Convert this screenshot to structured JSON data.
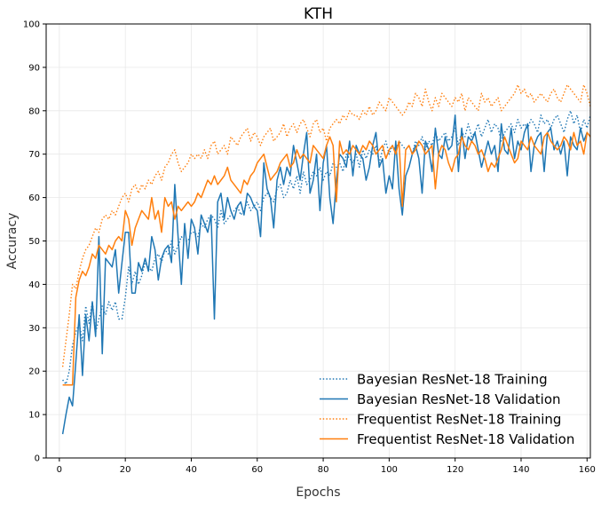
{
  "chart_data": {
    "type": "line",
    "title": "KTH",
    "xlabel": "Epochs",
    "ylabel": "Accuracy",
    "xlim": [
      -4,
      161
    ],
    "ylim": [
      0,
      100
    ],
    "xticks": [
      0,
      20,
      40,
      60,
      80,
      100,
      120,
      140,
      160
    ],
    "yticks": [
      0,
      10,
      20,
      30,
      40,
      50,
      60,
      70,
      80,
      90,
      100
    ],
    "grid": true,
    "legend_position": "lower-right",
    "series": [
      {
        "name": "Bayesian ResNet-18 Training",
        "color": "#1f77b4",
        "style": "dotted",
        "x": [
          1,
          2,
          3,
          4,
          5,
          6,
          7,
          8,
          9,
          10,
          11,
          12,
          13,
          14,
          15,
          16,
          17,
          18,
          19,
          20,
          21,
          22,
          23,
          24,
          25,
          26,
          27,
          28,
          29,
          30,
          31,
          32,
          33,
          34,
          35,
          36,
          37,
          38,
          39,
          40,
          41,
          42,
          43,
          44,
          45,
          46,
          47,
          48,
          49,
          50,
          51,
          52,
          53,
          54,
          55,
          56,
          57,
          58,
          59,
          60,
          61,
          62,
          63,
          64,
          65,
          66,
          67,
          68,
          69,
          70,
          71,
          72,
          73,
          74,
          75,
          76,
          77,
          78,
          79,
          80,
          81,
          82,
          83,
          84,
          85,
          86,
          87,
          88,
          89,
          90,
          91,
          92,
          93,
          94,
          95,
          96,
          97,
          98,
          99,
          100,
          101,
          102,
          103,
          104,
          105,
          106,
          107,
          108,
          109,
          110,
          111,
          112,
          113,
          114,
          115,
          116,
          117,
          118,
          119,
          120,
          121,
          122,
          123,
          124,
          125,
          126,
          127,
          128,
          129,
          130,
          131,
          132,
          133,
          134,
          135,
          136,
          137,
          138,
          139,
          140,
          141,
          142,
          143,
          144,
          145,
          146,
          147,
          148,
          149,
          150,
          151,
          152,
          153,
          154,
          155,
          156,
          157,
          158,
          159,
          160,
          161
        ],
        "y": [
          18,
          17,
          20,
          26,
          29,
          31,
          27,
          35,
          31,
          36,
          29,
          32,
          35,
          33,
          36,
          34,
          36,
          32,
          32,
          37,
          44,
          40,
          43,
          40,
          42,
          45,
          44,
          43,
          46,
          47,
          45,
          48,
          47,
          50,
          47,
          49,
          51,
          50,
          50,
          52,
          52,
          51,
          54,
          53,
          55,
          56,
          55,
          53,
          57,
          54,
          55,
          56,
          57,
          58,
          56,
          57,
          59,
          57,
          58,
          59,
          57,
          60,
          61,
          60,
          59,
          62,
          63,
          60,
          61,
          64,
          62,
          65,
          61,
          66,
          63,
          64,
          66,
          65,
          67,
          64,
          66,
          65,
          68,
          67,
          68,
          66,
          70,
          69,
          68,
          70,
          67,
          71,
          69,
          71,
          70,
          72,
          68,
          71,
          73,
          70,
          72,
          71,
          73,
          72,
          71,
          72,
          70,
          73,
          72,
          74,
          71,
          73,
          72,
          75,
          73,
          74,
          75,
          73,
          74,
          76,
          72,
          75,
          74,
          77,
          74,
          75,
          77,
          74,
          76,
          78,
          75,
          77,
          76,
          73,
          75,
          76,
          77,
          75,
          78,
          76,
          77,
          76,
          78,
          77,
          75,
          79,
          77,
          78,
          76,
          78,
          79,
          77,
          75,
          78,
          80,
          77,
          79,
          75,
          78,
          76,
          79
        ]
      },
      {
        "name": "Bayesian ResNet-18 Validation",
        "color": "#1f77b4",
        "style": "solid",
        "x": [
          1,
          2,
          3,
          4,
          5,
          6,
          7,
          8,
          9,
          10,
          11,
          12,
          13,
          14,
          15,
          16,
          17,
          18,
          19,
          20,
          21,
          22,
          23,
          24,
          25,
          26,
          27,
          28,
          29,
          30,
          31,
          32,
          33,
          34,
          35,
          36,
          37,
          38,
          39,
          40,
          41,
          42,
          43,
          44,
          45,
          46,
          47,
          48,
          49,
          50,
          51,
          52,
          53,
          54,
          55,
          56,
          57,
          58,
          59,
          60,
          61,
          62,
          63,
          64,
          65,
          66,
          67,
          68,
          69,
          70,
          71,
          72,
          73,
          74,
          75,
          76,
          77,
          78,
          79,
          80,
          81,
          82,
          83,
          84,
          85,
          86,
          87,
          88,
          89,
          90,
          91,
          92,
          93,
          94,
          95,
          96,
          97,
          98,
          99,
          100,
          101,
          102,
          103,
          104,
          105,
          106,
          107,
          108,
          109,
          110,
          111,
          112,
          113,
          114,
          115,
          116,
          117,
          118,
          119,
          120,
          121,
          122,
          123,
          124,
          125,
          126,
          127,
          128,
          129,
          130,
          131,
          132,
          133,
          134,
          135,
          136,
          137,
          138,
          139,
          140,
          141,
          142,
          143,
          144,
          145,
          146,
          147,
          148,
          149,
          150,
          151,
          152,
          153,
          154,
          155,
          156,
          157,
          158,
          159,
          160,
          161
        ],
        "y": [
          5.5,
          10,
          14,
          12,
          22,
          33,
          19,
          33,
          27,
          36,
          28,
          51,
          24,
          46,
          45,
          44,
          48,
          38,
          45,
          52,
          52,
          38,
          38,
          45,
          43,
          46,
          43,
          51,
          48,
          41,
          46,
          48,
          49,
          45,
          63,
          51,
          40,
          54,
          46,
          55,
          53,
          47,
          56,
          54,
          52,
          56,
          32,
          59,
          61,
          55,
          60,
          57,
          55,
          58,
          59,
          56,
          61,
          60,
          58,
          57,
          51,
          68,
          62,
          60,
          53,
          64,
          67,
          63,
          67,
          65,
          72,
          68,
          64,
          70,
          75,
          61,
          64,
          70,
          57,
          68,
          72,
          60,
          54,
          64,
          70,
          69,
          67,
          73,
          65,
          72,
          70,
          69,
          64,
          67,
          72,
          75,
          67,
          69,
          61,
          65,
          62,
          73,
          62,
          56,
          65,
          67,
          70,
          72,
          69,
          61,
          73,
          71,
          66,
          76,
          70,
          69,
          74,
          71,
          72,
          79,
          66,
          76,
          69,
          74,
          73,
          75,
          71,
          67,
          70,
          73,
          70,
          72,
          66,
          77,
          71,
          70,
          76,
          69,
          73,
          71,
          75,
          77,
          66,
          72,
          74,
          75,
          66,
          75,
          76,
          71,
          73,
          70,
          73,
          65,
          74,
          72,
          71,
          76,
          73,
          75,
          74
        ]
      },
      {
        "name": "Frequentist ResNet-18 Training",
        "color": "#ff7f0e",
        "style": "dotted",
        "x": [
          1,
          2,
          3,
          4,
          5,
          6,
          7,
          8,
          9,
          10,
          11,
          12,
          13,
          14,
          15,
          16,
          17,
          18,
          19,
          20,
          21,
          22,
          23,
          24,
          25,
          26,
          27,
          28,
          29,
          30,
          31,
          32,
          33,
          34,
          35,
          36,
          37,
          38,
          39,
          40,
          41,
          42,
          43,
          44,
          45,
          46,
          47,
          48,
          49,
          50,
          51,
          52,
          53,
          54,
          55,
          56,
          57,
          58,
          59,
          60,
          61,
          62,
          63,
          64,
          65,
          66,
          67,
          68,
          69,
          70,
          71,
          72,
          73,
          74,
          75,
          76,
          77,
          78,
          79,
          80,
          81,
          82,
          83,
          84,
          85,
          86,
          87,
          88,
          89,
          90,
          91,
          92,
          93,
          94,
          95,
          96,
          97,
          98,
          99,
          100,
          101,
          102,
          103,
          104,
          105,
          106,
          107,
          108,
          109,
          110,
          111,
          112,
          113,
          114,
          115,
          116,
          117,
          118,
          119,
          120,
          121,
          122,
          123,
          124,
          125,
          126,
          127,
          128,
          129,
          130,
          131,
          132,
          133,
          134,
          135,
          136,
          137,
          138,
          139,
          140,
          141,
          142,
          143,
          144,
          145,
          146,
          147,
          148,
          149,
          150,
          151,
          152,
          153,
          154,
          155,
          156,
          157,
          158,
          159,
          160,
          161
        ],
        "y": [
          21,
          27,
          33,
          40,
          39,
          43,
          46,
          48,
          49,
          51,
          53,
          52,
          55,
          56,
          55,
          57,
          56,
          58,
          60,
          61,
          59,
          62,
          63,
          61,
          63,
          62,
          64,
          63,
          65,
          66,
          64,
          67,
          68,
          70,
          71,
          68,
          66,
          67,
          68,
          70,
          69,
          70,
          69,
          71,
          69,
          72,
          73,
          70,
          71,
          72,
          70,
          74,
          73,
          72,
          74,
          75,
          76,
          73,
          75,
          74,
          72,
          74,
          75,
          76,
          73,
          74,
          75,
          77,
          74,
          76,
          77,
          75,
          77,
          78,
          76,
          74,
          77,
          78,
          75,
          76,
          73,
          76,
          77,
          78,
          77,
          79,
          78,
          80,
          79,
          79,
          78,
          80,
          79,
          81,
          79,
          80,
          82,
          81,
          80,
          83,
          82,
          81,
          80,
          79,
          80,
          82,
          81,
          84,
          83,
          81,
          85,
          82,
          80,
          83,
          81,
          84,
          83,
          82,
          81,
          83,
          82,
          84,
          80,
          83,
          82,
          81,
          80,
          84,
          82,
          83,
          81,
          82,
          83,
          80,
          81,
          82,
          83,
          84,
          86,
          84,
          85,
          83,
          84,
          82,
          83,
          84,
          83,
          82,
          84,
          85,
          83,
          82,
          84,
          86,
          85,
          84,
          83,
          82,
          86,
          84,
          81
        ]
      },
      {
        "name": "Frequentist ResNet-18 Validation",
        "color": "#ff7f0e",
        "style": "solid",
        "x": [
          1,
          2,
          3,
          4,
          5,
          6,
          7,
          8,
          9,
          10,
          11,
          12,
          13,
          14,
          15,
          16,
          17,
          18,
          19,
          20,
          21,
          22,
          23,
          24,
          25,
          26,
          27,
          28,
          29,
          30,
          31,
          32,
          33,
          34,
          35,
          36,
          37,
          38,
          39,
          40,
          41,
          42,
          43,
          44,
          45,
          46,
          47,
          48,
          49,
          50,
          51,
          52,
          53,
          54,
          55,
          56,
          57,
          58,
          59,
          60,
          61,
          62,
          63,
          64,
          65,
          66,
          67,
          68,
          69,
          70,
          71,
          72,
          73,
          74,
          75,
          76,
          77,
          78,
          79,
          80,
          81,
          82,
          83,
          84,
          85,
          86,
          87,
          88,
          89,
          90,
          91,
          92,
          93,
          94,
          95,
          96,
          97,
          98,
          99,
          100,
          101,
          102,
          103,
          104,
          105,
          106,
          107,
          108,
          109,
          110,
          111,
          112,
          113,
          114,
          115,
          116,
          117,
          118,
          119,
          120,
          121,
          122,
          123,
          124,
          125,
          126,
          127,
          128,
          129,
          130,
          131,
          132,
          133,
          134,
          135,
          136,
          137,
          138,
          139,
          140,
          141,
          142,
          143,
          144,
          145,
          146,
          147,
          148,
          149,
          150,
          151,
          152,
          153,
          154,
          155,
          156,
          157,
          158,
          159,
          160,
          161
        ],
        "y": [
          16.8,
          16.8,
          16.8,
          16.8,
          37,
          41,
          43,
          42,
          44,
          47,
          46,
          49,
          48,
          47,
          49,
          48,
          50,
          51,
          50,
          57,
          55,
          49,
          53,
          55,
          57,
          56,
          55,
          60,
          55,
          57,
          52,
          60,
          58,
          59,
          55,
          58,
          57,
          58,
          59,
          58,
          59,
          61,
          60,
          62,
          64,
          63,
          65,
          63,
          64,
          65,
          67,
          64,
          63,
          62,
          61,
          64,
          63,
          65,
          66,
          68,
          69,
          70,
          67,
          64,
          65,
          66,
          68,
          69,
          70,
          67,
          68,
          71,
          69,
          70,
          69,
          68,
          72,
          71,
          70,
          69,
          72,
          74,
          72,
          59,
          73,
          70,
          71,
          70,
          72,
          71,
          70,
          72,
          71,
          73,
          72,
          70,
          71,
          72,
          69,
          71,
          72,
          70,
          73,
          58,
          71,
          72,
          70,
          71,
          73,
          72,
          70,
          71,
          72,
          62,
          70,
          72,
          71,
          68,
          66,
          69,
          70,
          74,
          72,
          71,
          73,
          72,
          70,
          71,
          69,
          66,
          68,
          67,
          69,
          71,
          74,
          72,
          70,
          68,
          69,
          73,
          72,
          71,
          74,
          72,
          71,
          70,
          74,
          75,
          73,
          72,
          71,
          72,
          74,
          73,
          71,
          75,
          72,
          73,
          70,
          75,
          74
        ]
      }
    ]
  }
}
